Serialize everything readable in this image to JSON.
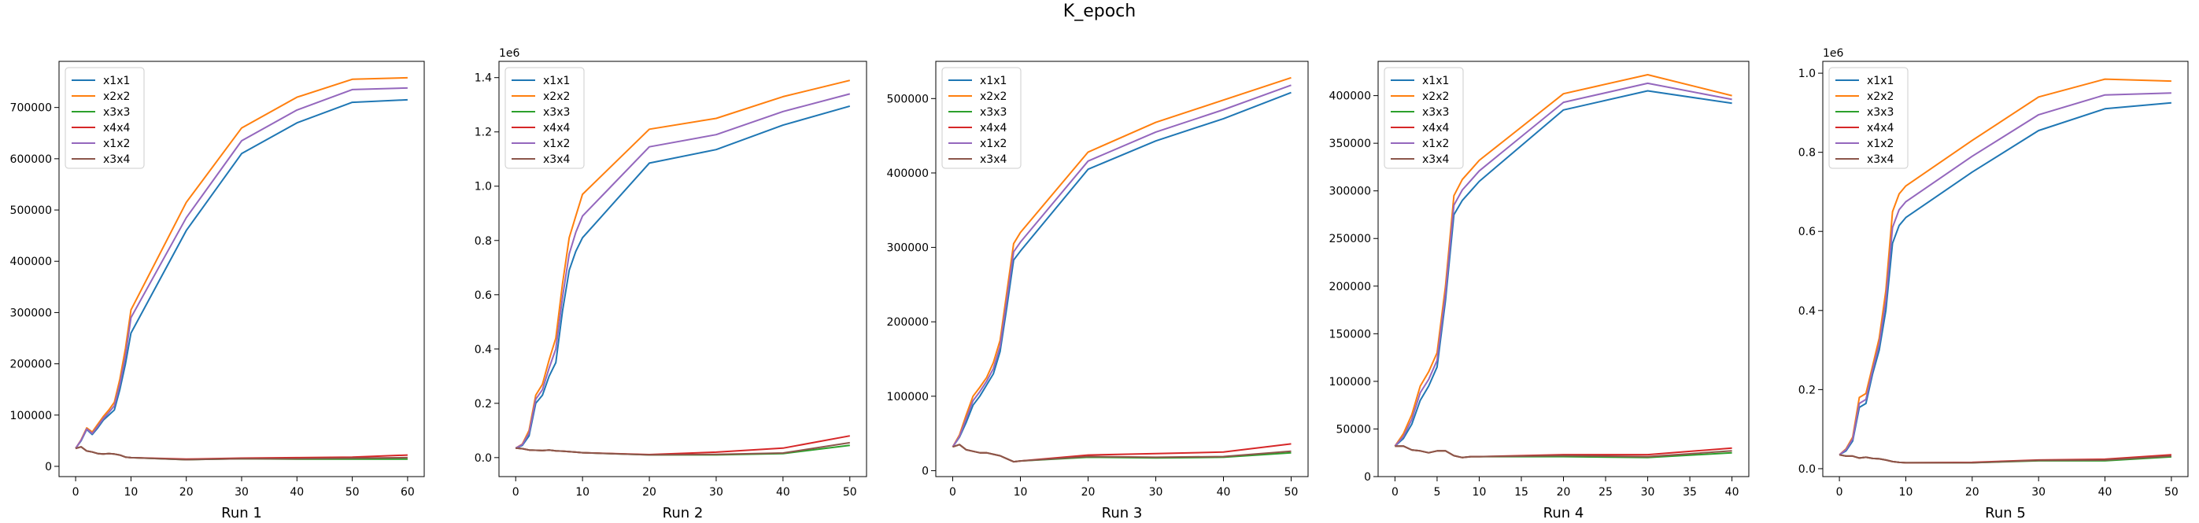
{
  "figure": {
    "title": "K_epoch"
  },
  "colors": {
    "x1x1": "#1f77b4",
    "x2x2": "#ff7f0e",
    "x3x3": "#2ca02c",
    "x4x4": "#d62728",
    "x1x2": "#9467bd",
    "x3x4": "#8c564b"
  },
  "chart_data": [
    {
      "type": "line",
      "title": "",
      "xlabel": "Run 1",
      "ylabel": "",
      "legend": "upper-left",
      "grid": false,
      "xlim": [
        -3,
        63
      ],
      "ylim": [
        -20000,
        790000
      ],
      "exponent": "",
      "xticks": [
        0,
        10,
        20,
        30,
        40,
        50,
        60
      ],
      "yticks": [
        0,
        100000,
        200000,
        300000,
        400000,
        500000,
        600000,
        700000
      ],
      "ytick_labels": [
        "0",
        "100000",
        "200000",
        "300000",
        "400000",
        "500000",
        "600000",
        "700000"
      ],
      "x": [
        0,
        1,
        2,
        3,
        4,
        5,
        6,
        7,
        8,
        9,
        10,
        20,
        30,
        40,
        50,
        60
      ],
      "series": [
        {
          "name": "x1x1",
          "values": [
            35000,
            50000,
            72000,
            62000,
            75000,
            90000,
            100000,
            110000,
            150000,
            200000,
            260000,
            460000,
            610000,
            670000,
            710000,
            715000
          ]
        },
        {
          "name": "x2x2",
          "values": [
            35000,
            52000,
            75000,
            67000,
            82000,
            97000,
            110000,
            125000,
            170000,
            230000,
            305000,
            515000,
            660000,
            720000,
            755000,
            758000
          ]
        },
        {
          "name": "x3x3",
          "values": [
            35000,
            38000,
            30000,
            28000,
            25000,
            24000,
            25000,
            24000,
            22000,
            18000,
            17000,
            13000,
            15000,
            14000,
            14000,
            14000
          ]
        },
        {
          "name": "x4x4",
          "values": [
            35000,
            38000,
            30000,
            28000,
            25000,
            24000,
            25000,
            24000,
            22000,
            18000,
            17000,
            14000,
            16000,
            17000,
            18000,
            22000
          ]
        },
        {
          "name": "x1x2",
          "values": [
            35000,
            51000,
            73000,
            64000,
            78000,
            93000,
            105000,
            118000,
            160000,
            215000,
            290000,
            485000,
            635000,
            695000,
            735000,
            738000
          ]
        },
        {
          "name": "x3x4",
          "values": [
            35000,
            38000,
            30000,
            28000,
            25000,
            24000,
            25000,
            24000,
            22000,
            18000,
            17000,
            13000,
            15000,
            15000,
            16000,
            17000
          ]
        }
      ]
    },
    {
      "type": "line",
      "title": "",
      "xlabel": "Run 2",
      "ylabel": "",
      "legend": "upper-left",
      "grid": false,
      "xlim": [
        -2.5,
        52.5
      ],
      "ylim": [
        -70000,
        1460000
      ],
      "exponent": "1e6",
      "xticks": [
        0,
        10,
        20,
        30,
        40,
        50
      ],
      "yticks": [
        0,
        200000,
        400000,
        600000,
        800000,
        1000000,
        1200000,
        1400000
      ],
      "ytick_labels": [
        "0.0",
        "0.2",
        "0.4",
        "0.6",
        "0.8",
        "1.0",
        "1.2",
        "1.4"
      ],
      "x": [
        0,
        1,
        2,
        3,
        4,
        5,
        6,
        7,
        8,
        9,
        10,
        20,
        30,
        40,
        50
      ],
      "series": [
        {
          "name": "x1x1",
          "values": [
            35000,
            45000,
            80000,
            200000,
            230000,
            300000,
            350000,
            540000,
            690000,
            760000,
            810000,
            1085000,
            1135000,
            1225000,
            1295000
          ]
        },
        {
          "name": "x2x2",
          "values": [
            35000,
            50000,
            100000,
            230000,
            270000,
            360000,
            440000,
            640000,
            810000,
            890000,
            970000,
            1210000,
            1250000,
            1330000,
            1390000
          ]
        },
        {
          "name": "x3x3",
          "values": [
            35000,
            33000,
            28000,
            27000,
            26000,
            28000,
            25000,
            24000,
            22000,
            20000,
            18000,
            10000,
            10000,
            15000,
            45000
          ]
        },
        {
          "name": "x4x4",
          "values": [
            35000,
            33000,
            28000,
            27000,
            26000,
            28000,
            25000,
            24000,
            22000,
            20000,
            18000,
            11000,
            20000,
            35000,
            80000
          ]
        },
        {
          "name": "x1x2",
          "values": [
            35000,
            48000,
            90000,
            215000,
            250000,
            330000,
            400000,
            590000,
            750000,
            830000,
            890000,
            1145000,
            1190000,
            1275000,
            1340000
          ]
        },
        {
          "name": "x3x4",
          "values": [
            35000,
            33000,
            28000,
            27000,
            26000,
            28000,
            25000,
            24000,
            22000,
            20000,
            18000,
            10000,
            12000,
            17000,
            55000
          ]
        }
      ]
    },
    {
      "type": "line",
      "title": "",
      "xlabel": "Run 3",
      "ylabel": "",
      "legend": "upper-left",
      "grid": false,
      "xlim": [
        -2.5,
        52.5
      ],
      "ylim": [
        -8000,
        550000
      ],
      "exponent": "",
      "xticks": [
        0,
        10,
        20,
        30,
        40,
        50
      ],
      "yticks": [
        0,
        100000,
        200000,
        300000,
        400000,
        500000
      ],
      "ytick_labels": [
        "0",
        "100000",
        "200000",
        "300000",
        "400000",
        "500000"
      ],
      "x": [
        0,
        1,
        2,
        3,
        4,
        5,
        6,
        7,
        8,
        9,
        10,
        20,
        30,
        40,
        50
      ],
      "series": [
        {
          "name": "x1x1",
          "values": [
            32000,
            45000,
            65000,
            88000,
            100000,
            115000,
            130000,
            160000,
            220000,
            283000,
            295000,
            405000,
            443000,
            473000,
            508000
          ]
        },
        {
          "name": "x2x2",
          "values": [
            32000,
            48000,
            75000,
            100000,
            112000,
            125000,
            145000,
            175000,
            240000,
            305000,
            320000,
            428000,
            468000,
            498000,
            528000
          ]
        },
        {
          "name": "x3x3",
          "values": [
            32000,
            35000,
            28000,
            26000,
            24000,
            24000,
            22000,
            20000,
            16000,
            12000,
            13000,
            18000,
            17000,
            18000,
            24000
          ]
        },
        {
          "name": "x4x4",
          "values": [
            32000,
            35000,
            28000,
            26000,
            24000,
            24000,
            22000,
            20000,
            16000,
            12000,
            13000,
            21000,
            23000,
            25000,
            36000
          ]
        },
        {
          "name": "x1x2",
          "values": [
            32000,
            46000,
            70000,
            94000,
            106000,
            120000,
            137000,
            167000,
            230000,
            294000,
            307000,
            416000,
            455000,
            485000,
            518000
          ]
        },
        {
          "name": "x3x4",
          "values": [
            32000,
            35000,
            28000,
            26000,
            24000,
            24000,
            22000,
            20000,
            16000,
            12000,
            13000,
            19000,
            18000,
            19000,
            26000
          ]
        }
      ]
    },
    {
      "type": "line",
      "title": "",
      "xlabel": "Run 4",
      "ylabel": "",
      "legend": "upper-left",
      "grid": false,
      "xlim": [
        -2,
        42
      ],
      "ylim": [
        0,
        436000
      ],
      "exponent": "",
      "xticks": [
        0,
        5,
        10,
        15,
        20,
        25,
        30,
        35,
        40
      ],
      "yticks": [
        0,
        50000,
        100000,
        150000,
        200000,
        250000,
        300000,
        350000,
        400000
      ],
      "ytick_labels": [
        "0",
        "50000",
        "100000",
        "150000",
        "200000",
        "250000",
        "300000",
        "350000",
        "400000"
      ],
      "x": [
        0,
        1,
        2,
        3,
        4,
        5,
        6,
        7,
        8,
        9,
        10,
        20,
        30,
        40
      ],
      "series": [
        {
          "name": "x1x1",
          "values": [
            32000,
            40000,
            55000,
            80000,
            95000,
            115000,
            185000,
            275000,
            290000,
            300000,
            310000,
            385000,
            405000,
            392000
          ]
        },
        {
          "name": "x2x2",
          "values": [
            32000,
            45000,
            65000,
            95000,
            110000,
            130000,
            200000,
            295000,
            312000,
            322000,
            332000,
            402000,
            422000,
            400000
          ]
        },
        {
          "name": "x3x3",
          "values": [
            32000,
            32000,
            28000,
            27000,
            25000,
            27000,
            27000,
            22000,
            20000,
            21000,
            21000,
            21000,
            20000,
            25000
          ]
        },
        {
          "name": "x4x4",
          "values": [
            32000,
            32000,
            28000,
            27000,
            25000,
            27000,
            27000,
            22000,
            20000,
            21000,
            21000,
            23000,
            23000,
            30000
          ]
        },
        {
          "name": "x1x2",
          "values": [
            32000,
            42000,
            60000,
            88000,
            102000,
            122000,
            192000,
            285000,
            301000,
            311000,
            321000,
            393000,
            413000,
            396000
          ]
        },
        {
          "name": "x3x4",
          "values": [
            32000,
            32000,
            28000,
            27000,
            25000,
            27000,
            27000,
            22000,
            20000,
            21000,
            21000,
            22000,
            21000,
            27000
          ]
        }
      ]
    },
    {
      "type": "line",
      "title": "",
      "xlabel": "Run 5",
      "ylabel": "",
      "legend": "upper-left",
      "grid": false,
      "xlim": [
        -2.5,
        52.5
      ],
      "ylim": [
        -20000,
        1030000
      ],
      "exponent": "1e6",
      "xticks": [
        0,
        10,
        20,
        30,
        40,
        50
      ],
      "yticks": [
        0,
        200000,
        400000,
        600000,
        800000,
        1000000
      ],
      "ytick_labels": [
        "0.0",
        "0.2",
        "0.4",
        "0.6",
        "0.8",
        "1.0"
      ],
      "x": [
        0,
        1,
        2,
        3,
        4,
        5,
        6,
        7,
        8,
        9,
        10,
        20,
        30,
        40,
        50
      ],
      "series": [
        {
          "name": "x1x1",
          "values": [
            35000,
            45000,
            70000,
            155000,
            165000,
            240000,
            300000,
            400000,
            570000,
            615000,
            635000,
            750000,
            855000,
            910000,
            925000
          ]
        },
        {
          "name": "x2x2",
          "values": [
            35000,
            50000,
            80000,
            180000,
            190000,
            260000,
            330000,
            450000,
            650000,
            695000,
            715000,
            830000,
            940000,
            985000,
            980000
          ]
        },
        {
          "name": "x3x3",
          "values": [
            35000,
            32000,
            32000,
            27000,
            29000,
            26000,
            25000,
            22000,
            18000,
            16000,
            15000,
            15000,
            20000,
            20000,
            30000
          ]
        },
        {
          "name": "x4x4",
          "values": [
            35000,
            32000,
            32000,
            27000,
            29000,
            26000,
            25000,
            22000,
            18000,
            16000,
            15000,
            16000,
            22000,
            24000,
            35000
          ]
        },
        {
          "name": "x1x2",
          "values": [
            35000,
            48000,
            75000,
            165000,
            175000,
            250000,
            315000,
            425000,
            610000,
            655000,
            675000,
            790000,
            895000,
            945000,
            950000
          ]
        },
        {
          "name": "x3x4",
          "values": [
            35000,
            32000,
            32000,
            27000,
            29000,
            26000,
            25000,
            22000,
            18000,
            16000,
            15000,
            15000,
            21000,
            22000,
            32000
          ]
        }
      ]
    }
  ]
}
